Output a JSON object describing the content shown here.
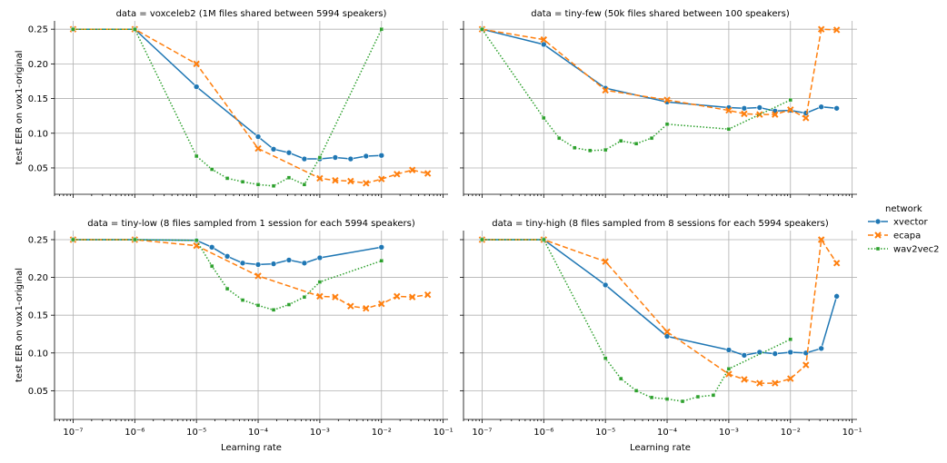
{
  "figure": {
    "legend_title": "network",
    "legend_position": "right"
  },
  "chart_data": [
    {
      "type": "line",
      "title": "data = voxceleb2 (1M files shared between 5994 speakers)",
      "xlabel": "",
      "ylabel": "test EER on vox1-original",
      "xscale": "log",
      "xlim": [
        5e-08,
        0.12
      ],
      "ylim": [
        0.012,
        0.262
      ],
      "yticks": [
        "0.05",
        "0.10",
        "0.15",
        "0.20",
        "0.25"
      ],
      "xticks": [],
      "grid": true,
      "series": [
        {
          "name": "xvector",
          "color": "#1f77b4",
          "dash": "",
          "marker": "circle",
          "x": [
            1e-07,
            1e-06,
            1e-05,
            0.0001,
            0.000178,
            0.000316,
            0.000562,
            0.001,
            0.00178,
            0.00316,
            0.00562,
            0.01
          ],
          "y": [
            0.25,
            0.25,
            0.167,
            0.095,
            0.077,
            0.072,
            0.063,
            0.063,
            0.065,
            0.063,
            0.067,
            0.068
          ]
        },
        {
          "name": "ecapa",
          "color": "#ff7f0e",
          "dash": "6,3",
          "marker": "x",
          "x": [
            1e-07,
            1e-06,
            1e-05,
            0.0001,
            0.001,
            0.00178,
            0.00316,
            0.00562,
            0.01,
            0.0178,
            0.0316,
            0.0562
          ],
          "y": [
            0.25,
            0.25,
            0.2,
            0.078,
            0.035,
            0.032,
            0.031,
            0.028,
            0.034,
            0.041,
            0.047,
            0.042
          ]
        },
        {
          "name": "wav2vec2",
          "color": "#2ca02c",
          "dash": "1.5,2",
          "marker": "square",
          "x": [
            1e-07,
            1e-06,
            1e-05,
            1.78e-05,
            3.16e-05,
            5.62e-05,
            0.0001,
            0.000178,
            0.000316,
            0.000562,
            0.001,
            0.01
          ],
          "y": [
            0.25,
            0.25,
            0.067,
            0.048,
            0.035,
            0.03,
            0.026,
            0.024,
            0.036,
            0.026,
            0.065,
            0.25
          ]
        }
      ]
    },
    {
      "type": "line",
      "title": "data = tiny-few (50k files shared between 100 speakers)",
      "xlabel": "",
      "ylabel": "",
      "xscale": "log",
      "xlim": [
        5e-08,
        0.12
      ],
      "ylim": [
        0.012,
        0.262
      ],
      "yticks": [],
      "xticks": [],
      "grid": true,
      "series": [
        {
          "name": "xvector",
          "color": "#1f77b4",
          "dash": "",
          "marker": "circle",
          "x": [
            1e-07,
            1e-06,
            1e-05,
            0.0001,
            0.001,
            0.00178,
            0.00316,
            0.00562,
            0.01,
            0.0178,
            0.0316,
            0.0562
          ],
          "y": [
            0.25,
            0.228,
            0.165,
            0.145,
            0.137,
            0.136,
            0.137,
            0.132,
            0.133,
            0.129,
            0.138,
            0.136
          ]
        },
        {
          "name": "ecapa",
          "color": "#ff7f0e",
          "dash": "6,3",
          "marker": "x",
          "x": [
            1e-07,
            1e-06,
            1e-05,
            0.0001,
            0.001,
            0.00178,
            0.00316,
            0.00562,
            0.01,
            0.0178,
            0.0316,
            0.0562
          ],
          "y": [
            0.25,
            0.235,
            0.162,
            0.148,
            0.133,
            0.128,
            0.127,
            0.127,
            0.134,
            0.122,
            0.25,
            0.249
          ]
        },
        {
          "name": "wav2vec2",
          "color": "#2ca02c",
          "dash": "1.5,2",
          "marker": "square",
          "x": [
            1e-07,
            1e-06,
            1.78e-06,
            3.16e-06,
            5.62e-06,
            1e-05,
            1.78e-05,
            3.16e-05,
            5.62e-05,
            0.0001,
            0.001,
            0.01
          ],
          "y": [
            0.25,
            0.122,
            0.093,
            0.079,
            0.075,
            0.076,
            0.089,
            0.085,
            0.093,
            0.113,
            0.106,
            0.148
          ]
        }
      ]
    },
    {
      "type": "line",
      "title": "data = tiny-low (8 files sampled from 1 session for each 5994 speakers)",
      "xlabel": "Learning rate",
      "ylabel": "test EER on vox1-original",
      "xscale": "log",
      "xlim": [
        5e-08,
        0.12
      ],
      "ylim": [
        0.012,
        0.262
      ],
      "yticks": [
        "0.05",
        "0.10",
        "0.15",
        "0.20",
        "0.25"
      ],
      "xticks": [
        "10⁻⁷",
        "10⁻⁶",
        "10⁻⁵",
        "10⁻⁴",
        "10⁻³",
        "10⁻²",
        "10⁻¹"
      ],
      "grid": true,
      "series": [
        {
          "name": "xvector",
          "color": "#1f77b4",
          "dash": "",
          "marker": "circle",
          "x": [
            1e-07,
            1e-06,
            1e-05,
            1.78e-05,
            3.16e-05,
            5.62e-05,
            0.0001,
            0.000178,
            0.000316,
            0.000562,
            0.001,
            0.01
          ],
          "y": [
            0.25,
            0.25,
            0.249,
            0.24,
            0.228,
            0.219,
            0.217,
            0.218,
            0.223,
            0.219,
            0.226,
            0.24
          ]
        },
        {
          "name": "ecapa",
          "color": "#ff7f0e",
          "dash": "6,3",
          "marker": "x",
          "x": [
            1e-07,
            1e-06,
            1e-05,
            0.0001,
            0.001,
            0.00178,
            0.00316,
            0.00562,
            0.01,
            0.0178,
            0.0316,
            0.0562
          ],
          "y": [
            0.25,
            0.25,
            0.242,
            0.202,
            0.175,
            0.174,
            0.162,
            0.159,
            0.165,
            0.175,
            0.174,
            0.177
          ]
        },
        {
          "name": "wav2vec2",
          "color": "#2ca02c",
          "dash": "1.5,2",
          "marker": "square",
          "x": [
            1e-07,
            1e-06,
            1e-05,
            1.78e-05,
            3.16e-05,
            5.62e-05,
            0.0001,
            0.000178,
            0.000316,
            0.000562,
            0.001,
            0.01
          ],
          "y": [
            0.25,
            0.25,
            0.249,
            0.215,
            0.185,
            0.17,
            0.163,
            0.157,
            0.164,
            0.174,
            0.194,
            0.222
          ]
        }
      ]
    },
    {
      "type": "line",
      "title": "data = tiny-high (8 files sampled from 8 sessions for each 5994 speakers)",
      "xlabel": "Learning rate",
      "ylabel": "",
      "xscale": "log",
      "xlim": [
        5e-08,
        0.12
      ],
      "ylim": [
        0.012,
        0.262
      ],
      "yticks": [],
      "xticks": [
        "10⁻⁷",
        "10⁻⁶",
        "10⁻⁵",
        "10⁻⁴",
        "10⁻³",
        "10⁻²",
        "10⁻¹"
      ],
      "grid": true,
      "series": [
        {
          "name": "xvector",
          "color": "#1f77b4",
          "dash": "",
          "marker": "circle",
          "x": [
            1e-07,
            1e-06,
            1e-05,
            0.0001,
            0.001,
            0.00178,
            0.00316,
            0.00562,
            0.01,
            0.0178,
            0.0316,
            0.0562
          ],
          "y": [
            0.25,
            0.25,
            0.19,
            0.122,
            0.104,
            0.097,
            0.101,
            0.099,
            0.101,
            0.1,
            0.106,
            0.175
          ]
        },
        {
          "name": "ecapa",
          "color": "#ff7f0e",
          "dash": "6,3",
          "marker": "x",
          "x": [
            1e-07,
            1e-06,
            1e-05,
            0.0001,
            0.001,
            0.00178,
            0.00316,
            0.00562,
            0.01,
            0.0178,
            0.0316,
            0.0562
          ],
          "y": [
            0.25,
            0.25,
            0.221,
            0.128,
            0.072,
            0.065,
            0.06,
            0.06,
            0.066,
            0.084,
            0.25,
            0.219
          ]
        },
        {
          "name": "wav2vec2",
          "color": "#2ca02c",
          "dash": "1.5,2",
          "marker": "square",
          "x": [
            1e-07,
            1e-06,
            1e-05,
            1.78e-05,
            3.16e-05,
            5.62e-05,
            0.0001,
            0.000178,
            0.000316,
            0.000562,
            0.001,
            0.01
          ],
          "y": [
            0.25,
            0.25,
            0.093,
            0.066,
            0.05,
            0.041,
            0.039,
            0.036,
            0.042,
            0.044,
            0.079,
            0.118
          ]
        }
      ]
    }
  ]
}
